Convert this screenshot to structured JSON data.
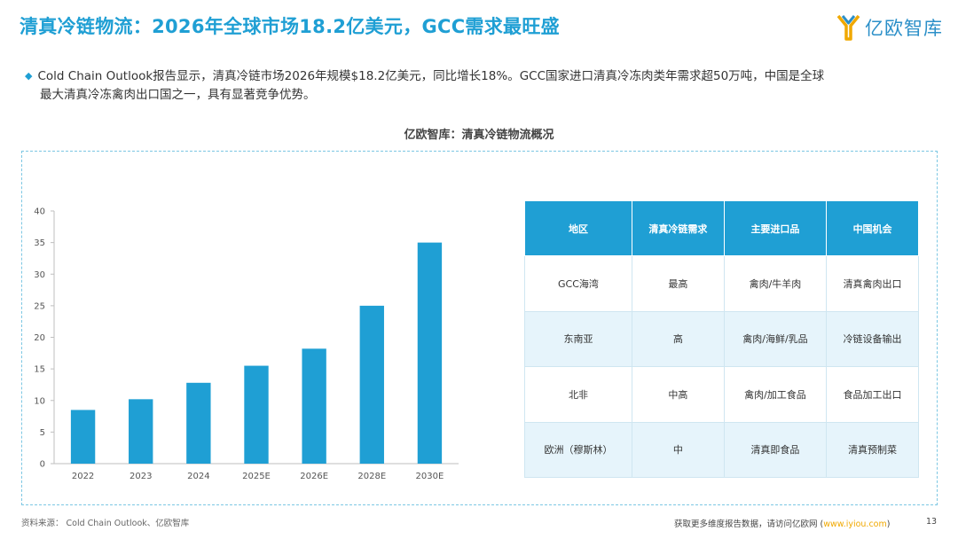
{
  "header": {
    "title": "清真冷链物流：2026年全球市场18.2亿美元，GCC需求最旺盛",
    "logo_text": "亿欧智库"
  },
  "summary": {
    "line1": "Cold Chain Outlook报告显示，清真冷链市场2026年规模$18.2亿美元，同比增长18%。GCC国家进口清真冷冻肉类年需求超50万吨，中国是全球",
    "line2": "最大清真冷冻禽肉出口国之一，具有显著竞争优势。"
  },
  "chart_title": "亿欧智库：清真冷链物流概况",
  "chart_data": {
    "type": "bar",
    "categories": [
      "2022",
      "2023",
      "2024",
      "2025E",
      "2026E",
      "2028E",
      "2030E"
    ],
    "values": [
      8.5,
      10.2,
      12.8,
      15.5,
      18.2,
      25.0,
      35.0
    ],
    "ylim": [
      0,
      40
    ],
    "yticks": [
      0,
      5,
      10,
      15,
      20,
      25,
      30,
      35,
      40
    ],
    "bar_color": "#1f9fd4",
    "grid": false
  },
  "table": {
    "headers": [
      "地区",
      "清真冷链需求",
      "主要进口品",
      "中国机会"
    ],
    "rows": [
      [
        "GCC海湾",
        "最高",
        "禽肉/牛羊肉",
        "清真禽肉出口"
      ],
      [
        "东南亚",
        "高",
        "禽肉/海鲜/乳品",
        "冷链设备输出"
      ],
      [
        "北非",
        "中高",
        "禽肉/加工食品",
        "食品加工出口"
      ],
      [
        "欧洲（穆斯林）",
        "中",
        "清真即食品",
        "清真预制菜"
      ]
    ]
  },
  "footer": {
    "source": "资料来源： Cold Chain Outlook、亿欧智库",
    "note_prefix": "获取更多维度报告数据，请访问亿欧网 (",
    "note_url": "www.iyiou.com",
    "note_suffix": ")",
    "page_number": "13"
  },
  "colors": {
    "accent": "#1f9fd4",
    "table_alt_row": "#e6f4fb",
    "panel_border": "#7cc7e3"
  }
}
